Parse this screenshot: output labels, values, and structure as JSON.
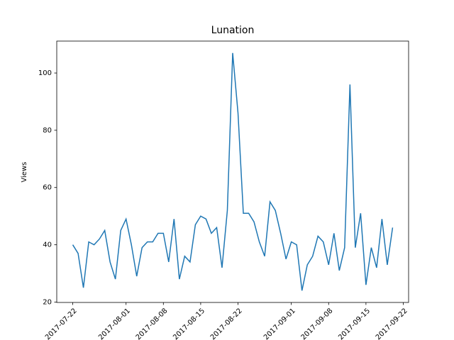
{
  "chart_data": {
    "type": "line",
    "title": "Lunation",
    "y_label": "Views",
    "x": [
      "2017-07-22",
      "2017-07-23",
      "2017-07-24",
      "2017-07-25",
      "2017-07-26",
      "2017-07-27",
      "2017-07-28",
      "2017-07-29",
      "2017-07-30",
      "2017-07-31",
      "2017-08-01",
      "2017-08-02",
      "2017-08-03",
      "2017-08-04",
      "2017-08-05",
      "2017-08-06",
      "2017-08-07",
      "2017-08-08",
      "2017-08-09",
      "2017-08-10",
      "2017-08-11",
      "2017-08-12",
      "2017-08-13",
      "2017-08-14",
      "2017-08-15",
      "2017-08-16",
      "2017-08-17",
      "2017-08-18",
      "2017-08-19",
      "2017-08-20",
      "2017-08-21",
      "2017-08-22",
      "2017-08-23",
      "2017-08-24",
      "2017-08-25",
      "2017-08-26",
      "2017-08-27",
      "2017-08-28",
      "2017-08-29",
      "2017-08-30",
      "2017-08-31",
      "2017-09-01",
      "2017-09-02",
      "2017-09-03",
      "2017-09-04",
      "2017-09-05",
      "2017-09-06",
      "2017-09-07",
      "2017-09-08",
      "2017-09-09",
      "2017-09-10",
      "2017-09-11",
      "2017-09-12",
      "2017-09-13",
      "2017-09-14",
      "2017-09-15",
      "2017-09-16",
      "2017-09-17",
      "2017-09-18",
      "2017-09-19",
      "2017-09-20"
    ],
    "series": [
      {
        "color": "#1f77b4",
        "values": [
          40,
          37,
          25,
          41,
          40,
          42,
          45,
          34,
          28,
          45,
          49,
          40,
          29,
          39,
          41,
          41,
          44,
          44,
          34,
          49,
          28,
          36,
          34,
          47,
          50,
          49,
          44,
          46,
          32,
          52,
          107,
          86,
          51,
          51,
          48,
          41,
          36,
          55,
          52,
          44,
          35,
          41,
          40,
          24,
          33,
          36,
          43,
          41,
          33,
          44,
          31,
          39,
          96,
          39,
          51,
          26,
          39,
          32,
          49,
          33,
          46
        ]
      }
    ],
    "xlim": [
      "2017-07-19",
      "2017-09-23"
    ],
    "xticks": [
      "2017-07-22",
      "2017-08-01",
      "2017-08-08",
      "2017-08-15",
      "2017-08-22",
      "2017-09-01",
      "2017-09-08",
      "2017-09-15",
      "2017-09-22"
    ],
    "ylim": [
      19.85,
      111.15
    ],
    "yticks": [
      20,
      40,
      60,
      80,
      100
    ]
  }
}
